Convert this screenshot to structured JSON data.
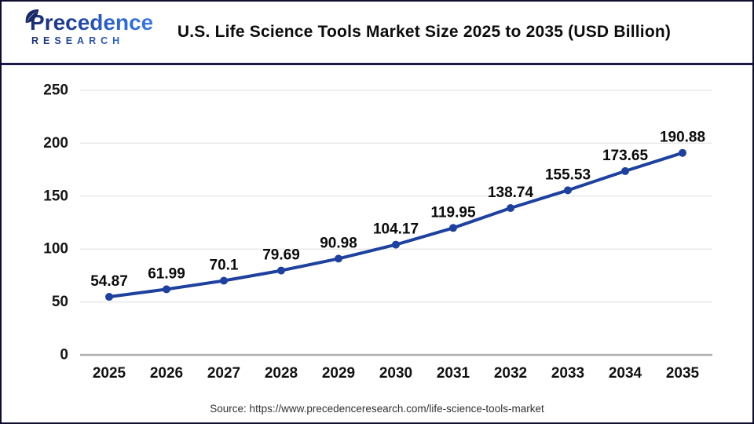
{
  "header": {
    "logo": {
      "brand": "Precedence",
      "sub": "RESEARCH",
      "leaf_icon": "leaf-icon",
      "navy": "#1a2a68",
      "blue": "#3b7ada"
    },
    "title": "U.S. Life Science Tools Market Size 2025 to 2035 (USD Billion)"
  },
  "chart_data": {
    "type": "line",
    "title": "U.S. Life Science Tools Market Size 2025 to 2035 (USD Billion)",
    "categories": [
      "2025",
      "2026",
      "2027",
      "2028",
      "2029",
      "2030",
      "2031",
      "2032",
      "2033",
      "2034",
      "2035"
    ],
    "values": [
      54.87,
      61.99,
      70.1,
      79.69,
      90.98,
      104.17,
      119.95,
      138.74,
      155.53,
      173.65,
      190.88
    ],
    "point_labels": [
      "54.87",
      "61.99",
      "70.1",
      "79.69",
      "90.98",
      "104.17",
      "119.95",
      "138.74",
      "155.53",
      "173.65",
      "190.88"
    ],
    "xlabel": "",
    "ylabel": "",
    "ylim": [
      0,
      250
    ],
    "yticks": [
      0,
      50,
      100,
      150,
      200,
      250
    ],
    "grid": true,
    "legend": "none",
    "theme": {
      "line_color": "#1f419e",
      "marker_color": "#1f419e",
      "grid_color": "#e8e8e8",
      "axis_color": "#b0b0b0",
      "label_color": "#0b0b0b"
    }
  },
  "footer": {
    "source": "Source: https://www.precedenceresearch.com/life-science-tools-market"
  }
}
